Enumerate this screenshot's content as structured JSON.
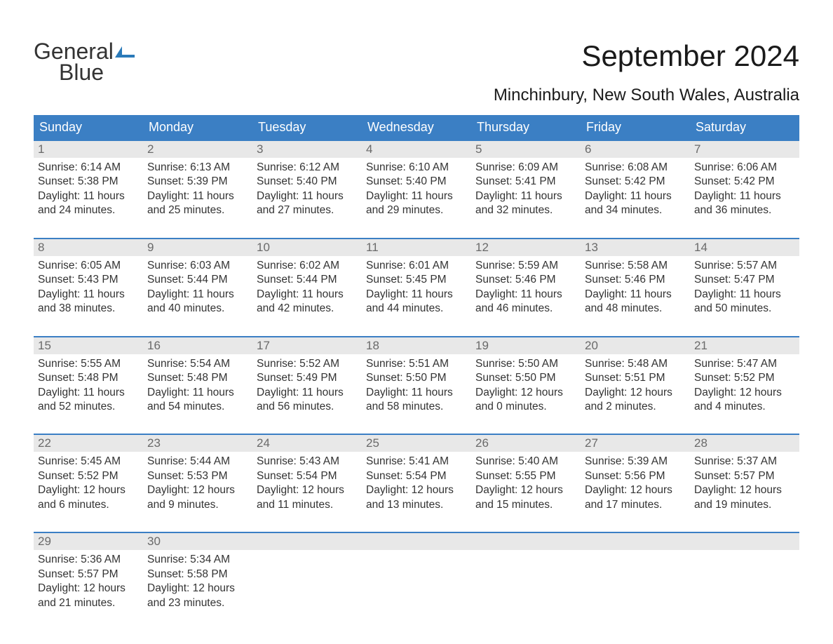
{
  "logo": {
    "line1": "General",
    "line2": "Blue"
  },
  "title": "September 2024",
  "location": "Minchinbury, New South Wales, Australia",
  "colors": {
    "header_bg": "#3b7fc4",
    "header_text": "#ffffff",
    "daynum_bg": "#e8e8e8",
    "daynum_text": "#6a6a6a",
    "body_text": "#333333",
    "week_border": "#3b7fc4",
    "logo_blue": "#2a7ab9",
    "background": "#ffffff"
  },
  "typography": {
    "title_fontsize": 42,
    "location_fontsize": 24,
    "weekday_fontsize": 18,
    "daynum_fontsize": 17,
    "cell_fontsize": 15.5,
    "logo_fontsize": 32
  },
  "weekdays": [
    "Sunday",
    "Monday",
    "Tuesday",
    "Wednesday",
    "Thursday",
    "Friday",
    "Saturday"
  ],
  "weeks": [
    [
      {
        "n": "1",
        "sunrise": "6:14 AM",
        "sunset": "5:38 PM",
        "daylight1": "Daylight: 11 hours",
        "daylight2": "and 24 minutes."
      },
      {
        "n": "2",
        "sunrise": "6:13 AM",
        "sunset": "5:39 PM",
        "daylight1": "Daylight: 11 hours",
        "daylight2": "and 25 minutes."
      },
      {
        "n": "3",
        "sunrise": "6:12 AM",
        "sunset": "5:40 PM",
        "daylight1": "Daylight: 11 hours",
        "daylight2": "and 27 minutes."
      },
      {
        "n": "4",
        "sunrise": "6:10 AM",
        "sunset": "5:40 PM",
        "daylight1": "Daylight: 11 hours",
        "daylight2": "and 29 minutes."
      },
      {
        "n": "5",
        "sunrise": "6:09 AM",
        "sunset": "5:41 PM",
        "daylight1": "Daylight: 11 hours",
        "daylight2": "and 32 minutes."
      },
      {
        "n": "6",
        "sunrise": "6:08 AM",
        "sunset": "5:42 PM",
        "daylight1": "Daylight: 11 hours",
        "daylight2": "and 34 minutes."
      },
      {
        "n": "7",
        "sunrise": "6:06 AM",
        "sunset": "5:42 PM",
        "daylight1": "Daylight: 11 hours",
        "daylight2": "and 36 minutes."
      }
    ],
    [
      {
        "n": "8",
        "sunrise": "6:05 AM",
        "sunset": "5:43 PM",
        "daylight1": "Daylight: 11 hours",
        "daylight2": "and 38 minutes."
      },
      {
        "n": "9",
        "sunrise": "6:03 AM",
        "sunset": "5:44 PM",
        "daylight1": "Daylight: 11 hours",
        "daylight2": "and 40 minutes."
      },
      {
        "n": "10",
        "sunrise": "6:02 AM",
        "sunset": "5:44 PM",
        "daylight1": "Daylight: 11 hours",
        "daylight2": "and 42 minutes."
      },
      {
        "n": "11",
        "sunrise": "6:01 AM",
        "sunset": "5:45 PM",
        "daylight1": "Daylight: 11 hours",
        "daylight2": "and 44 minutes."
      },
      {
        "n": "12",
        "sunrise": "5:59 AM",
        "sunset": "5:46 PM",
        "daylight1": "Daylight: 11 hours",
        "daylight2": "and 46 minutes."
      },
      {
        "n": "13",
        "sunrise": "5:58 AM",
        "sunset": "5:46 PM",
        "daylight1": "Daylight: 11 hours",
        "daylight2": "and 48 minutes."
      },
      {
        "n": "14",
        "sunrise": "5:57 AM",
        "sunset": "5:47 PM",
        "daylight1": "Daylight: 11 hours",
        "daylight2": "and 50 minutes."
      }
    ],
    [
      {
        "n": "15",
        "sunrise": "5:55 AM",
        "sunset": "5:48 PM",
        "daylight1": "Daylight: 11 hours",
        "daylight2": "and 52 minutes."
      },
      {
        "n": "16",
        "sunrise": "5:54 AM",
        "sunset": "5:48 PM",
        "daylight1": "Daylight: 11 hours",
        "daylight2": "and 54 minutes."
      },
      {
        "n": "17",
        "sunrise": "5:52 AM",
        "sunset": "5:49 PM",
        "daylight1": "Daylight: 11 hours",
        "daylight2": "and 56 minutes."
      },
      {
        "n": "18",
        "sunrise": "5:51 AM",
        "sunset": "5:50 PM",
        "daylight1": "Daylight: 11 hours",
        "daylight2": "and 58 minutes."
      },
      {
        "n": "19",
        "sunrise": "5:50 AM",
        "sunset": "5:50 PM",
        "daylight1": "Daylight: 12 hours",
        "daylight2": "and 0 minutes."
      },
      {
        "n": "20",
        "sunrise": "5:48 AM",
        "sunset": "5:51 PM",
        "daylight1": "Daylight: 12 hours",
        "daylight2": "and 2 minutes."
      },
      {
        "n": "21",
        "sunrise": "5:47 AM",
        "sunset": "5:52 PM",
        "daylight1": "Daylight: 12 hours",
        "daylight2": "and 4 minutes."
      }
    ],
    [
      {
        "n": "22",
        "sunrise": "5:45 AM",
        "sunset": "5:52 PM",
        "daylight1": "Daylight: 12 hours",
        "daylight2": "and 6 minutes."
      },
      {
        "n": "23",
        "sunrise": "5:44 AM",
        "sunset": "5:53 PM",
        "daylight1": "Daylight: 12 hours",
        "daylight2": "and 9 minutes."
      },
      {
        "n": "24",
        "sunrise": "5:43 AM",
        "sunset": "5:54 PM",
        "daylight1": "Daylight: 12 hours",
        "daylight2": "and 11 minutes."
      },
      {
        "n": "25",
        "sunrise": "5:41 AM",
        "sunset": "5:54 PM",
        "daylight1": "Daylight: 12 hours",
        "daylight2": "and 13 minutes."
      },
      {
        "n": "26",
        "sunrise": "5:40 AM",
        "sunset": "5:55 PM",
        "daylight1": "Daylight: 12 hours",
        "daylight2": "and 15 minutes."
      },
      {
        "n": "27",
        "sunrise": "5:39 AM",
        "sunset": "5:56 PM",
        "daylight1": "Daylight: 12 hours",
        "daylight2": "and 17 minutes."
      },
      {
        "n": "28",
        "sunrise": "5:37 AM",
        "sunset": "5:57 PM",
        "daylight1": "Daylight: 12 hours",
        "daylight2": "and 19 minutes."
      }
    ],
    [
      {
        "n": "29",
        "sunrise": "5:36 AM",
        "sunset": "5:57 PM",
        "daylight1": "Daylight: 12 hours",
        "daylight2": "and 21 minutes."
      },
      {
        "n": "30",
        "sunrise": "5:34 AM",
        "sunset": "5:58 PM",
        "daylight1": "Daylight: 12 hours",
        "daylight2": "and 23 minutes."
      },
      {
        "empty": true
      },
      {
        "empty": true
      },
      {
        "empty": true
      },
      {
        "empty": true
      },
      {
        "empty": true
      }
    ]
  ]
}
